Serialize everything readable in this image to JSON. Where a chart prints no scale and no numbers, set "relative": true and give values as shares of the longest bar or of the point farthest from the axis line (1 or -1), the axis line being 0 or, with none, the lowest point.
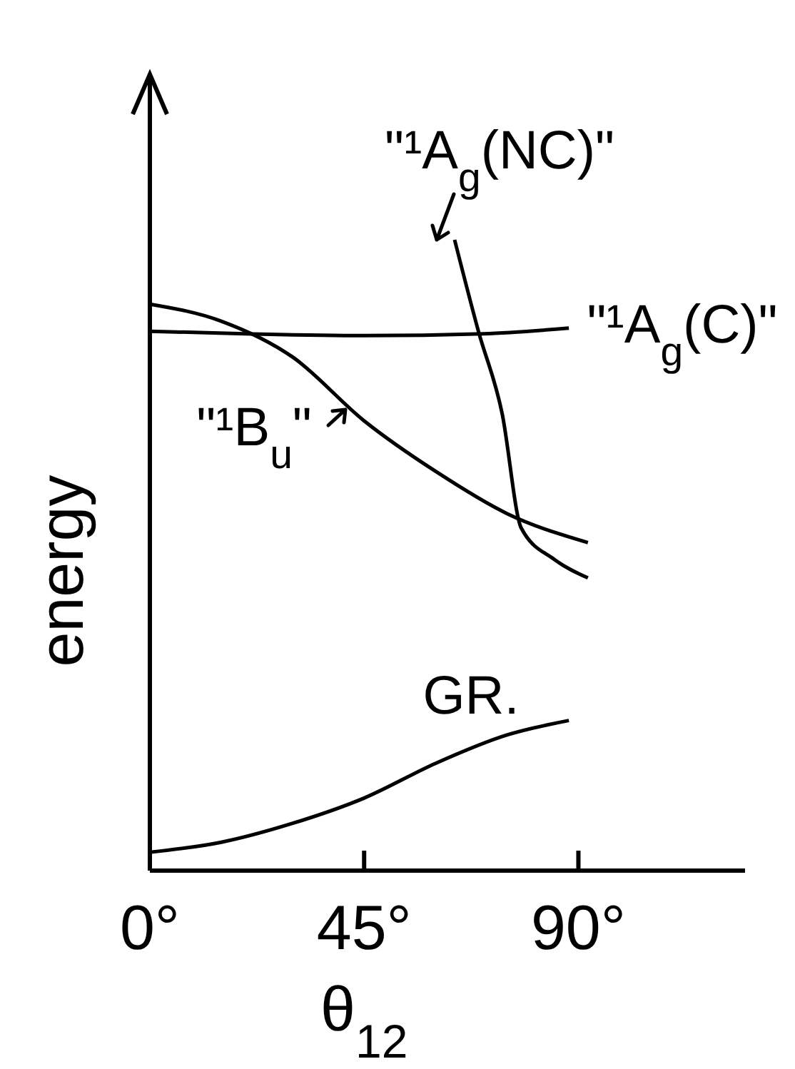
{
  "chart_data": {
    "type": "line",
    "relative": true,
    "xlabel": "θ$_{12}$",
    "ylabel": "energy",
    "xlim": [
      0,
      125
    ],
    "xticks": [
      {
        "value": 0,
        "label": "0°"
      },
      {
        "value": 45,
        "label": "45°"
      },
      {
        "value": 90,
        "label": "90°"
      }
    ],
    "grid": false,
    "marker": "none",
    "line_style": "solid",
    "series": [
      {
        "name": "GR.",
        "color": "#000000",
        "x": [
          0,
          15,
          30,
          45,
          60,
          75,
          88
        ],
        "values": [
          0.029,
          0.045,
          0.075,
          0.115,
          0.17,
          0.215,
          0.238
        ]
      },
      {
        "name": "\"¹B$_{u}$\"",
        "color": "#000000",
        "x": [
          0,
          15,
          30,
          45,
          60,
          75,
          92
        ],
        "values": [
          0.898,
          0.871,
          0.814,
          0.713,
          0.633,
          0.566,
          0.52
        ]
      },
      {
        "name": "\"¹A$_{g}$(C)\"",
        "color": "#000000",
        "x": [
          0,
          20,
          45,
          70,
          88
        ],
        "values": [
          0.855,
          0.851,
          0.848,
          0.851,
          0.86
        ]
      },
      {
        "name": "\"¹A$_{g}$(NC)\"",
        "color": "#000000",
        "x": [
          64,
          69,
          74,
          78,
          85,
          92
        ],
        "values": [
          1.0,
          0.855,
          0.724,
          0.543,
          0.493,
          0.464
        ]
      }
    ]
  }
}
